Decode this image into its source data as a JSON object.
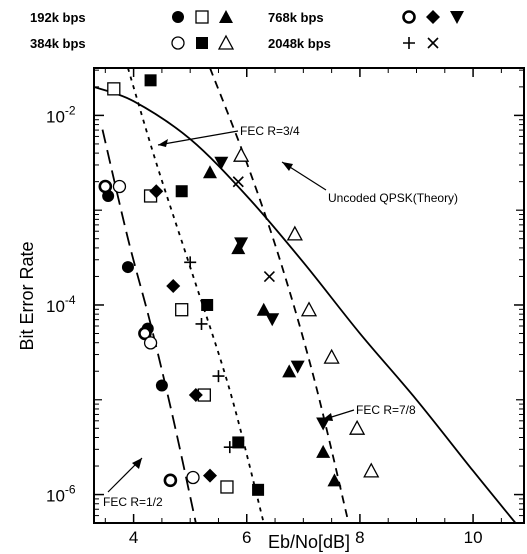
{
  "chart_data": {
    "type": "scatter",
    "xlabel": "Eb/No[dB]",
    "ylabel": "Bit Error Rate",
    "xlim": [
      3.3,
      10.9
    ],
    "ylim_log10": [
      -6.3,
      -1.5
    ],
    "y_scale": "log",
    "x_ticks": [
      4,
      6,
      8,
      10
    ],
    "x_tick_labels": [
      "4",
      "6",
      "8",
      "10"
    ],
    "y_ticks": [
      -6,
      -4,
      -2
    ],
    "y_tick_label_base": "10",
    "y_tick_label_exps": [
      "-6",
      "-4",
      "-2"
    ],
    "legend_placement": "top",
    "legend": [
      {
        "label": "192k bps",
        "markers": [
          "filled-circle",
          "open-square",
          "filled-triangle"
        ]
      },
      {
        "label": "768k bps",
        "markers": [
          "thick-open-circle",
          "filled-diamond",
          "filled-inverted-triangle"
        ]
      },
      {
        "label": "384k bps",
        "markers": [
          "open-circle",
          "filled-square",
          "open-triangle"
        ]
      },
      {
        "label": "2048k bps",
        "markers": [
          "plus",
          "cross"
        ]
      }
    ],
    "annotations": [
      {
        "text": "FEC R=3/4"
      },
      {
        "text": "Uncoded QPSK(Theory)"
      },
      {
        "text": "FEC R=7/8"
      },
      {
        "text": "FEC R=1/2"
      }
    ],
    "curves": [
      {
        "style": "solid",
        "points": [
          [
            3.3,
            -1.7
          ],
          [
            4.0,
            -1.85
          ],
          [
            5.0,
            -2.25
          ],
          [
            6.0,
            -2.85
          ],
          [
            7.0,
            -3.55
          ],
          [
            8.0,
            -4.3
          ],
          [
            9.0,
            -5.0
          ],
          [
            10.0,
            -5.75
          ],
          [
            10.75,
            -6.3
          ]
        ]
      },
      {
        "style": "long-dash",
        "points": [
          [
            3.45,
            -2.15
          ],
          [
            3.9,
            -3.3
          ],
          [
            4.3,
            -4.2
          ],
          [
            4.7,
            -5.2
          ],
          [
            5.1,
            -6.3
          ]
        ]
      },
      {
        "style": "short-dash",
        "points": [
          [
            3.9,
            -1.5
          ],
          [
            4.4,
            -2.5
          ],
          [
            5.0,
            -3.6
          ],
          [
            5.7,
            -4.9
          ],
          [
            6.3,
            -6.3
          ]
        ]
      },
      {
        "style": "dash",
        "points": [
          [
            5.35,
            -1.5
          ],
          [
            6.0,
            -2.5
          ],
          [
            6.6,
            -3.55
          ],
          [
            7.2,
            -4.8
          ],
          [
            7.8,
            -6.3
          ]
        ]
      }
    ],
    "series": [
      {
        "marker": "filled-circle",
        "points": [
          [
            3.55,
            -2.85
          ],
          [
            3.9,
            -3.6
          ],
          [
            4.25,
            -4.25
          ],
          [
            4.5,
            -4.85
          ]
        ]
      },
      {
        "marker": "open-square",
        "points": [
          [
            3.65,
            -1.72
          ],
          [
            4.3,
            -2.85
          ],
          [
            4.85,
            -4.05
          ],
          [
            5.25,
            -4.95
          ],
          [
            5.65,
            -5.92
          ]
        ]
      },
      {
        "marker": "filled-triangle",
        "points": [
          [
            5.35,
            -2.6
          ],
          [
            5.85,
            -3.4
          ],
          [
            6.3,
            -4.05
          ],
          [
            6.75,
            -4.7
          ],
          [
            7.35,
            -5.55
          ],
          [
            7.55,
            -5.85
          ]
        ]
      },
      {
        "marker": "thick-open-circle",
        "points": [
          [
            3.5,
            -2.75
          ],
          [
            4.2,
            -4.3
          ],
          [
            4.65,
            -5.85
          ]
        ]
      },
      {
        "marker": "filled-diamond",
        "points": [
          [
            4.4,
            -2.8
          ],
          [
            4.7,
            -3.8
          ],
          [
            5.1,
            -4.95
          ],
          [
            5.35,
            -5.8
          ]
        ]
      },
      {
        "marker": "filled-inverted-triangle",
        "points": [
          [
            5.55,
            -2.5
          ],
          [
            5.9,
            -3.35
          ],
          [
            6.45,
            -4.15
          ],
          [
            6.9,
            -4.65
          ],
          [
            7.35,
            -5.25
          ]
        ]
      },
      {
        "marker": "open-circle",
        "points": [
          [
            3.75,
            -2.75
          ],
          [
            4.3,
            -4.4
          ],
          [
            5.05,
            -5.82
          ]
        ]
      },
      {
        "marker": "filled-square",
        "points": [
          [
            4.3,
            -1.63
          ],
          [
            4.85,
            -2.8
          ],
          [
            5.3,
            -4.0
          ],
          [
            5.85,
            -5.45
          ],
          [
            6.2,
            -5.95
          ]
        ]
      },
      {
        "marker": "open-triangle",
        "points": [
          [
            5.9,
            -2.42
          ],
          [
            6.85,
            -3.25
          ],
          [
            7.1,
            -4.05
          ],
          [
            7.5,
            -4.55
          ],
          [
            7.95,
            -5.3
          ],
          [
            8.2,
            -5.75
          ]
        ]
      },
      {
        "marker": "plus",
        "points": [
          [
            5.0,
            -3.55
          ],
          [
            5.2,
            -4.2
          ],
          [
            5.5,
            -4.75
          ],
          [
            5.7,
            -5.5
          ]
        ]
      },
      {
        "marker": "cross",
        "points": [
          [
            5.85,
            -2.7
          ],
          [
            6.4,
            -3.7
          ]
        ]
      }
    ]
  }
}
